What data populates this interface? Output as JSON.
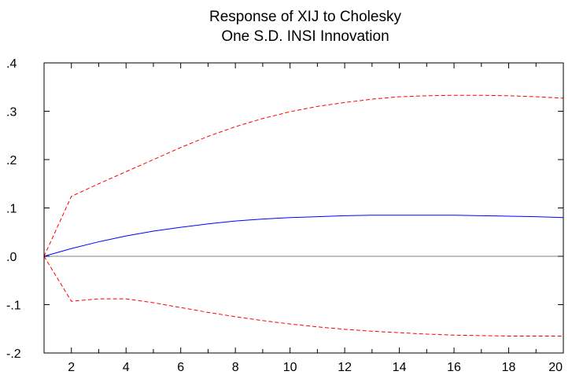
{
  "chart_data": {
    "type": "line",
    "title_lines": [
      "Response of XIJ to Cholesky",
      "One S.D. INSI Innovation"
    ],
    "xlim": [
      1,
      20
    ],
    "ylim": [
      -0.2,
      0.4
    ],
    "x_ticks": [
      2,
      4,
      6,
      8,
      10,
      12,
      14,
      16,
      18,
      20
    ],
    "y_ticks": [
      -0.2,
      -0.1,
      0.0,
      0.1,
      0.2,
      0.3,
      0.4
    ],
    "y_tick_labels": [
      "-.2",
      "-.1",
      ".0",
      ".1",
      ".2",
      ".3",
      ".4"
    ],
    "zero_line": true,
    "x": [
      1,
      2,
      3,
      4,
      5,
      6,
      7,
      8,
      9,
      10,
      11,
      12,
      13,
      14,
      15,
      16,
      17,
      18,
      19,
      20
    ],
    "series": [
      {
        "role": "response",
        "color": "#0000ff",
        "dash": "solid",
        "values": [
          0.0,
          0.016,
          0.03,
          0.042,
          0.052,
          0.06,
          0.067,
          0.073,
          0.077,
          0.08,
          0.082,
          0.084,
          0.085,
          0.085,
          0.085,
          0.085,
          0.084,
          0.083,
          0.082,
          0.08
        ]
      },
      {
        "role": "upper-band",
        "color": "#ff0000",
        "dash": "dashed",
        "values": [
          0.0,
          0.124,
          0.15,
          0.175,
          0.2,
          0.225,
          0.248,
          0.268,
          0.285,
          0.299,
          0.31,
          0.318,
          0.325,
          0.33,
          0.332,
          0.333,
          0.333,
          0.332,
          0.33,
          0.327
        ]
      },
      {
        "role": "lower-band",
        "color": "#ff0000",
        "dash": "dashed",
        "values": [
          0.0,
          -0.093,
          -0.088,
          -0.088,
          -0.096,
          -0.106,
          -0.116,
          -0.125,
          -0.133,
          -0.14,
          -0.146,
          -0.151,
          -0.155,
          -0.158,
          -0.161,
          -0.163,
          -0.164,
          -0.165,
          -0.165,
          -0.165
        ]
      }
    ],
    "zero_line_color": "#808080"
  }
}
